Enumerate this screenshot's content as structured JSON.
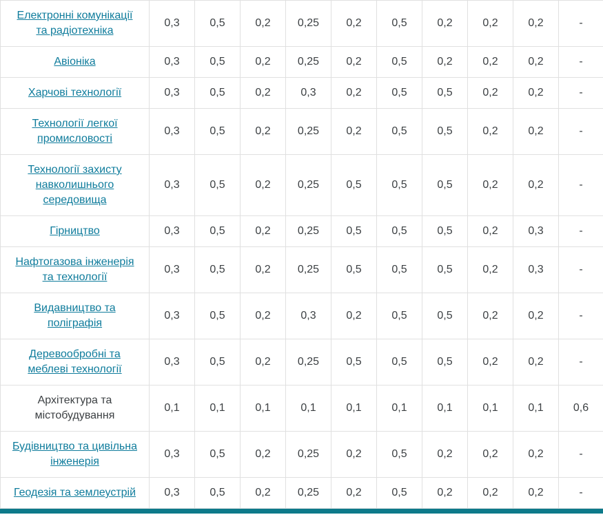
{
  "colors": {
    "link": "#0f7c9c",
    "accent_bar": "#0d7a8a",
    "border": "#e0e0e0",
    "text": "#3c4043"
  },
  "table": {
    "rows": [
      {
        "name": "Електронні комунікації та радіотехніка",
        "is_link": true,
        "values": [
          "0,3",
          "0,5",
          "0,2",
          "0,25",
          "0,2",
          "0,5",
          "0,2",
          "0,2",
          "0,2",
          "-"
        ]
      },
      {
        "name": "Авіоніка",
        "is_link": true,
        "values": [
          "0,3",
          "0,5",
          "0,2",
          "0,25",
          "0,2",
          "0,5",
          "0,2",
          "0,2",
          "0,2",
          "-"
        ]
      },
      {
        "name": "Харчові технології",
        "is_link": true,
        "values": [
          "0,3",
          "0,5",
          "0,2",
          "0,3",
          "0,2",
          "0,5",
          "0,5",
          "0,2",
          "0,2",
          "-"
        ]
      },
      {
        "name": "Технології легкої промисловості",
        "is_link": true,
        "values": [
          "0,3",
          "0,5",
          "0,2",
          "0,25",
          "0,2",
          "0,5",
          "0,5",
          "0,2",
          "0,2",
          "-"
        ]
      },
      {
        "name": "Технології захисту навколишнього середовища",
        "is_link": true,
        "values": [
          "0,3",
          "0,5",
          "0,2",
          "0,25",
          "0,5",
          "0,5",
          "0,5",
          "0,2",
          "0,2",
          "-"
        ]
      },
      {
        "name": "Гірництво",
        "is_link": true,
        "values": [
          "0,3",
          "0,5",
          "0,2",
          "0,25",
          "0,5",
          "0,5",
          "0,5",
          "0,2",
          "0,3",
          "-"
        ]
      },
      {
        "name": "Нафтогазова інженерія та технології",
        "is_link": true,
        "values": [
          "0,3",
          "0,5",
          "0,2",
          "0,25",
          "0,5",
          "0,5",
          "0,5",
          "0,2",
          "0,3",
          "-"
        ]
      },
      {
        "name": "Видавництво та поліграфія",
        "is_link": true,
        "values": [
          "0,3",
          "0,5",
          "0,2",
          "0,3",
          "0,2",
          "0,5",
          "0,5",
          "0,2",
          "0,2",
          "-"
        ]
      },
      {
        "name": "Деревообробні та меблеві технології",
        "is_link": true,
        "values": [
          "0,3",
          "0,5",
          "0,2",
          "0,25",
          "0,5",
          "0,5",
          "0,5",
          "0,2",
          "0,2",
          "-"
        ]
      },
      {
        "name": "Архітектура та містобудування",
        "is_link": false,
        "values": [
          "0,1",
          "0,1",
          "0,1",
          "0,1",
          "0,1",
          "0,1",
          "0,1",
          "0,1",
          "0,1",
          "0,6"
        ]
      },
      {
        "name": "Будівництво та цивільна інженерія",
        "is_link": true,
        "values": [
          "0,3",
          "0,5",
          "0,2",
          "0,25",
          "0,2",
          "0,5",
          "0,2",
          "0,2",
          "0,2",
          "-"
        ]
      },
      {
        "name": "Геодезія та землеустрій",
        "is_link": true,
        "values": [
          "0,3",
          "0,5",
          "0,2",
          "0,25",
          "0,2",
          "0,5",
          "0,2",
          "0,2",
          "0,2",
          "-"
        ]
      }
    ]
  }
}
